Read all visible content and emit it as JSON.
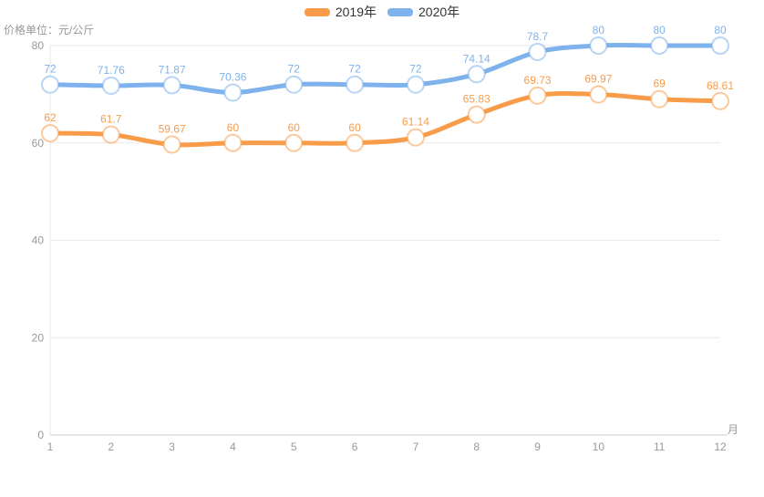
{
  "chart_data": {
    "type": "line",
    "unit_label": "价格单位：元/公斤",
    "xaxis_name": "月",
    "categories": [
      "1",
      "2",
      "3",
      "4",
      "5",
      "6",
      "7",
      "8",
      "9",
      "10",
      "11",
      "12"
    ],
    "series": [
      {
        "name": "2019年",
        "color": "#f89c4a",
        "values": [
          62,
          61.7,
          59.67,
          60,
          60,
          60,
          61.14,
          65.83,
          69.73,
          69.97,
          69,
          68.61
        ]
      },
      {
        "name": "2020年",
        "color": "#7eb2ec",
        "values": [
          72,
          71.76,
          71.87,
          70.36,
          72,
          72,
          72,
          74.14,
          78.7,
          80,
          80,
          80
        ]
      }
    ],
    "ylim": [
      0,
      80
    ],
    "yticks": [
      0,
      20,
      40,
      60,
      80
    ],
    "grid": "horizontal-only",
    "legend_position": "top-center",
    "smooth": true,
    "colors": {
      "axis_label": "#999999",
      "grid_line": "#e9e9e9",
      "axis_line": "#cccccc",
      "legend_text": "#333333",
      "background": "#ffffff"
    }
  }
}
